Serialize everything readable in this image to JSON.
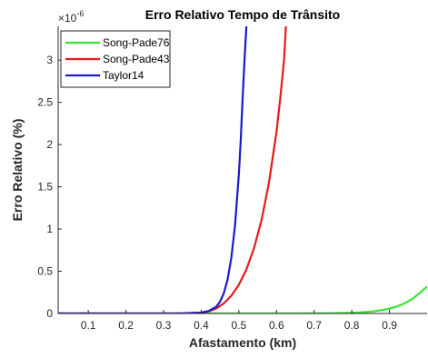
{
  "chart_data": {
    "type": "line",
    "title": "Erro Relativo Tempo de Trânsito",
    "xlabel": "Afastamento (km)",
    "ylabel": "Erro Relativo (%)",
    "y_exponent_label": "×10",
    "y_exponent_power": "-6",
    "xlim": [
      0.02,
      1.0
    ],
    "ylim": [
      0,
      3.4
    ],
    "x_ticks": [
      0.1,
      0.2,
      0.3,
      0.4,
      0.5,
      0.6,
      0.7,
      0.8,
      0.9
    ],
    "x_tick_labels": [
      "0.1",
      "0.2",
      "0.3",
      "0.4",
      "0.5",
      "0.6",
      "0.7",
      "0.8",
      "0.9"
    ],
    "y_ticks": [
      0,
      0.5,
      1,
      1.5,
      2,
      2.5,
      3
    ],
    "y_tick_labels": [
      "0",
      "0.5",
      "1",
      "1.5",
      "2",
      "2.5",
      "3"
    ],
    "grid": false,
    "legend_position": "top-left",
    "series": [
      {
        "name": "Song-Pade76",
        "color": "#33e633",
        "x": [
          0.02,
          0.1,
          0.2,
          0.3,
          0.4,
          0.5,
          0.6,
          0.7,
          0.75,
          0.8,
          0.82,
          0.84,
          0.86,
          0.88,
          0.9,
          0.92,
          0.94,
          0.96,
          0.98,
          1.0
        ],
        "y": [
          0,
          0,
          0,
          0,
          0,
          0,
          0,
          0.001,
          0.003,
          0.008,
          0.012,
          0.018,
          0.027,
          0.04,
          0.058,
          0.083,
          0.12,
          0.17,
          0.24,
          0.32
        ]
      },
      {
        "name": "Song-Pade43",
        "color": "#e61a1a",
        "x": [
          0.02,
          0.1,
          0.2,
          0.3,
          0.35,
          0.4,
          0.42,
          0.44,
          0.46,
          0.48,
          0.5,
          0.52,
          0.54,
          0.56,
          0.58,
          0.6,
          0.61,
          0.62,
          0.625
        ],
        "y": [
          0,
          0,
          0,
          0,
          0.001,
          0.01,
          0.025,
          0.06,
          0.12,
          0.21,
          0.34,
          0.52,
          0.77,
          1.1,
          1.55,
          2.15,
          2.55,
          3.0,
          3.4
        ]
      },
      {
        "name": "Taylor14",
        "color": "#1a1acc",
        "x": [
          0.02,
          0.1,
          0.2,
          0.3,
          0.35,
          0.4,
          0.42,
          0.44,
          0.45,
          0.46,
          0.47,
          0.48,
          0.49,
          0.5,
          0.505,
          0.51,
          0.515,
          0.52
        ],
        "y": [
          0,
          0,
          0,
          0,
          0.001,
          0.01,
          0.03,
          0.08,
          0.14,
          0.24,
          0.4,
          0.66,
          1.05,
          1.65,
          2.05,
          2.55,
          3.0,
          3.4
        ]
      }
    ]
  }
}
